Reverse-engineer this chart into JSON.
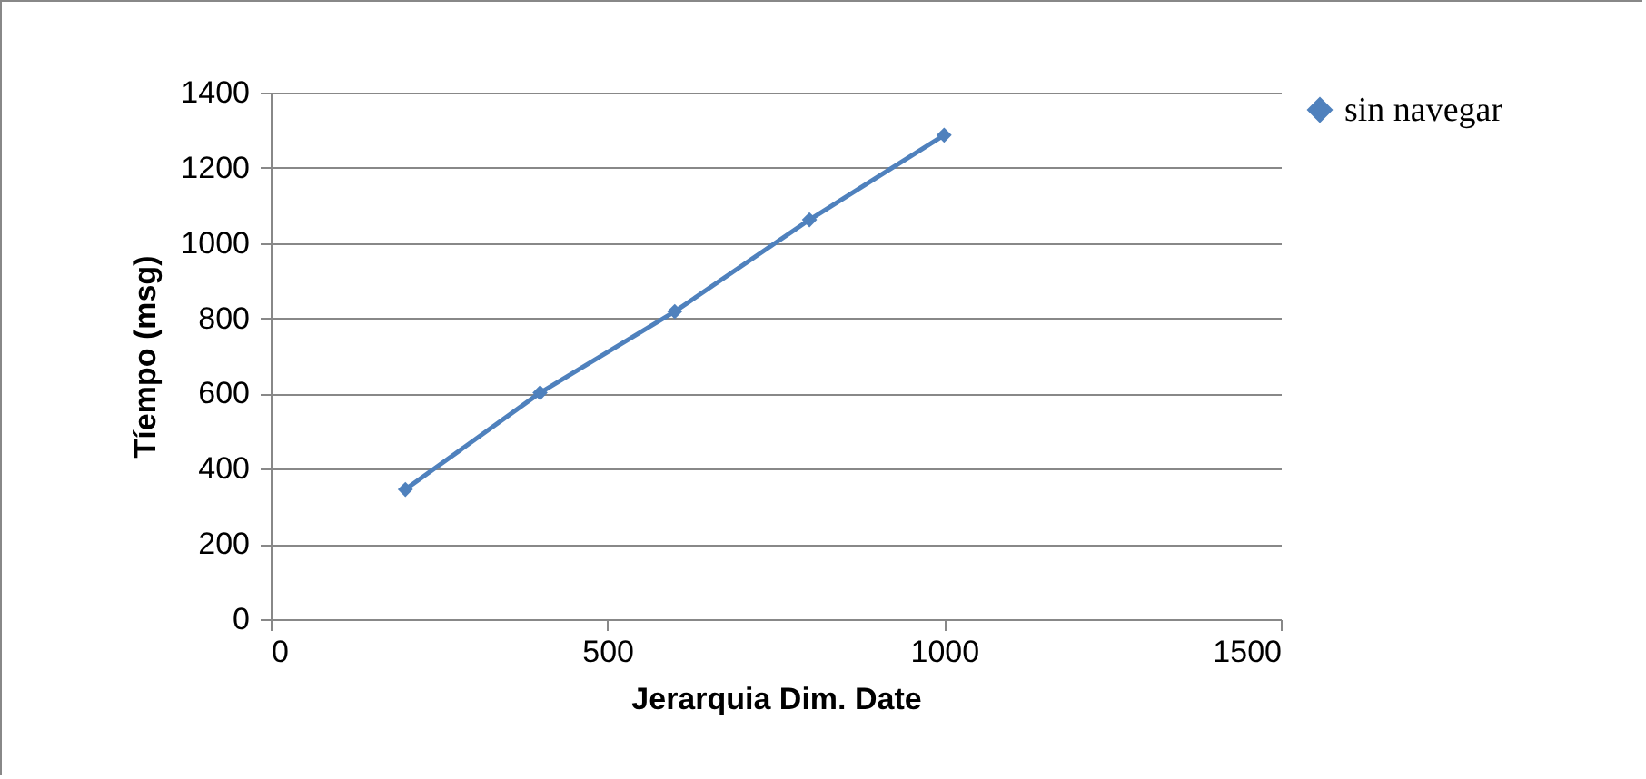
{
  "chart_data": {
    "type": "line",
    "xlabel": "Jerarquia Dim. Date",
    "ylabel": "Tíempo (msg)",
    "x": [
      200,
      400,
      600,
      800,
      1000
    ],
    "series": [
      {
        "name": "sin navegar",
        "color": "#4f81bd",
        "values": [
          345,
          602,
          818,
          1062,
          1287
        ]
      }
    ],
    "xlim": [
      0,
      1500
    ],
    "xticks": [
      0,
      500,
      1000,
      1500
    ],
    "ylim": [
      0,
      1400
    ],
    "yticks": [
      0,
      200,
      400,
      600,
      800,
      1000,
      1200,
      1400
    ],
    "grid": "y",
    "legend": "right",
    "marker": "diamond",
    "line_style": "solid"
  }
}
